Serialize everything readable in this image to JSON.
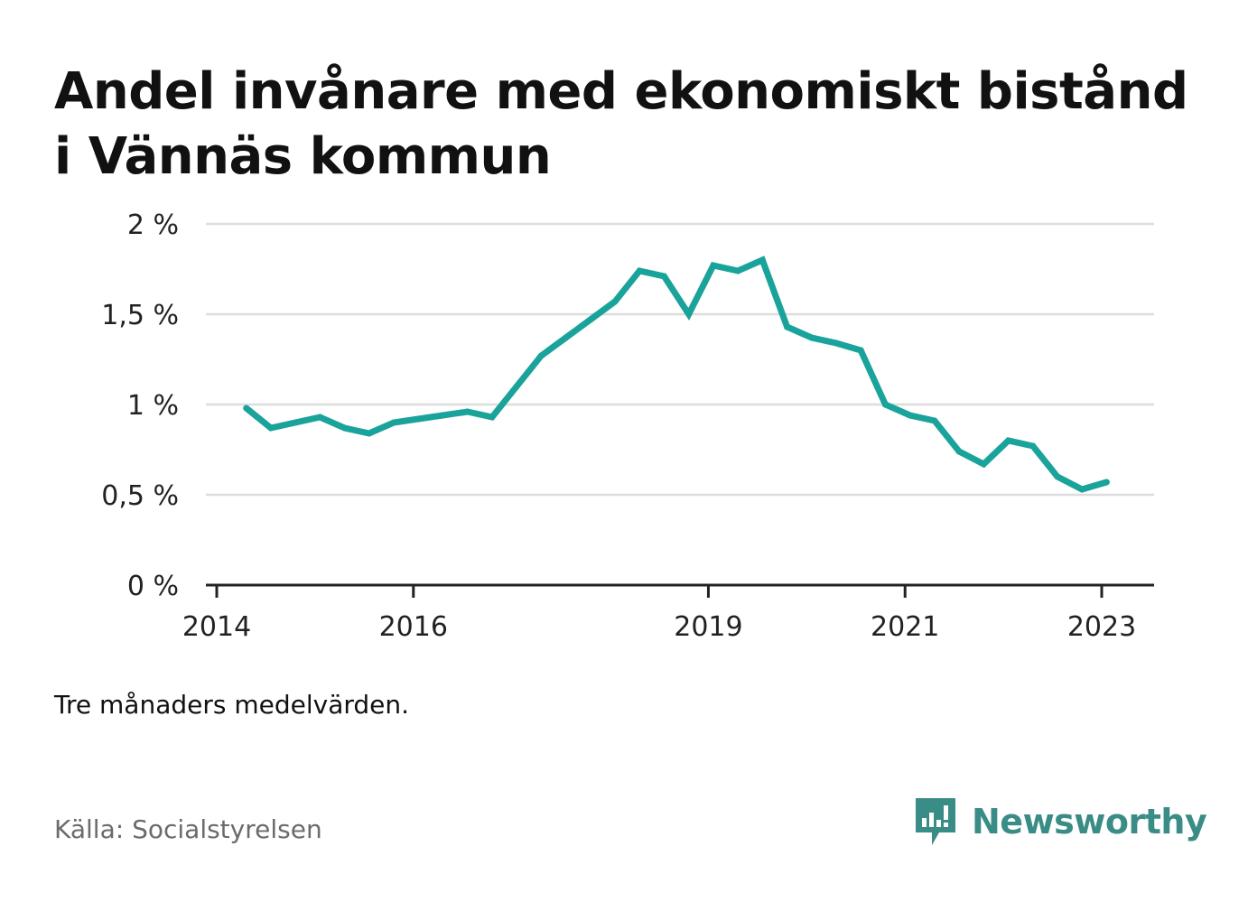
{
  "title": "Andel invånare med ekonomiskt bistånd i Vännäs kommun",
  "note": "Tre månaders medelvärden.",
  "source": "Källa: Socialstyrelsen",
  "brand": {
    "name": "Newsworthy",
    "icon": "newsworthy-logo-icon",
    "color": "#3a8c86"
  },
  "colors": {
    "line": "#1aa39a",
    "grid": "#dddddd",
    "axis": "#222222"
  },
  "chart_data": {
    "type": "line",
    "title": "Andel invånare med ekonomiskt bistånd i Vännäs kommun",
    "xlabel": "",
    "ylabel": "",
    "xlim": [
      2013.95,
      2023.5
    ],
    "ylim": [
      0,
      2
    ],
    "grid": true,
    "legend": "none",
    "y_ticks": [
      {
        "value": 0,
        "label": "0 %"
      },
      {
        "value": 0.5,
        "label": "0,5 %"
      },
      {
        "value": 1,
        "label": "1 %"
      },
      {
        "value": 1.5,
        "label": "1,5 %"
      },
      {
        "value": 2,
        "label": "2 %"
      }
    ],
    "x_ticks": [
      {
        "value": 2014,
        "label": "2014"
      },
      {
        "value": 2016,
        "label": "2016"
      },
      {
        "value": 2019,
        "label": "2019"
      },
      {
        "value": 2021,
        "label": "2021"
      },
      {
        "value": 2023,
        "label": "2023"
      }
    ],
    "series": [
      {
        "x": [
          2014.3,
          2014.55,
          2014.8,
          2015.05,
          2015.3,
          2015.55,
          2015.8,
          2016.05,
          2016.3,
          2016.55,
          2016.8,
          2017.05,
          2017.3,
          2017.55,
          2017.8,
          2018.05,
          2018.3,
          2018.55,
          2018.8,
          2019.05,
          2019.3,
          2019.55,
          2019.8,
          2020.05,
          2020.3,
          2020.55,
          2020.8,
          2021.05,
          2021.3,
          2021.55,
          2021.8,
          2022.05,
          2022.3,
          2022.55,
          2022.8,
          2023.05
        ],
        "values": [
          0.98,
          0.87,
          0.9,
          0.93,
          0.87,
          0.84,
          0.9,
          0.92,
          0.94,
          0.96,
          0.93,
          1.1,
          1.27,
          1.37,
          1.47,
          1.57,
          1.74,
          1.71,
          1.5,
          1.77,
          1.74,
          1.8,
          1.43,
          1.37,
          1.34,
          1.3,
          1.0,
          0.94,
          0.91,
          0.74,
          0.67,
          0.8,
          0.77,
          0.6,
          0.53,
          0.57
        ]
      }
    ]
  }
}
